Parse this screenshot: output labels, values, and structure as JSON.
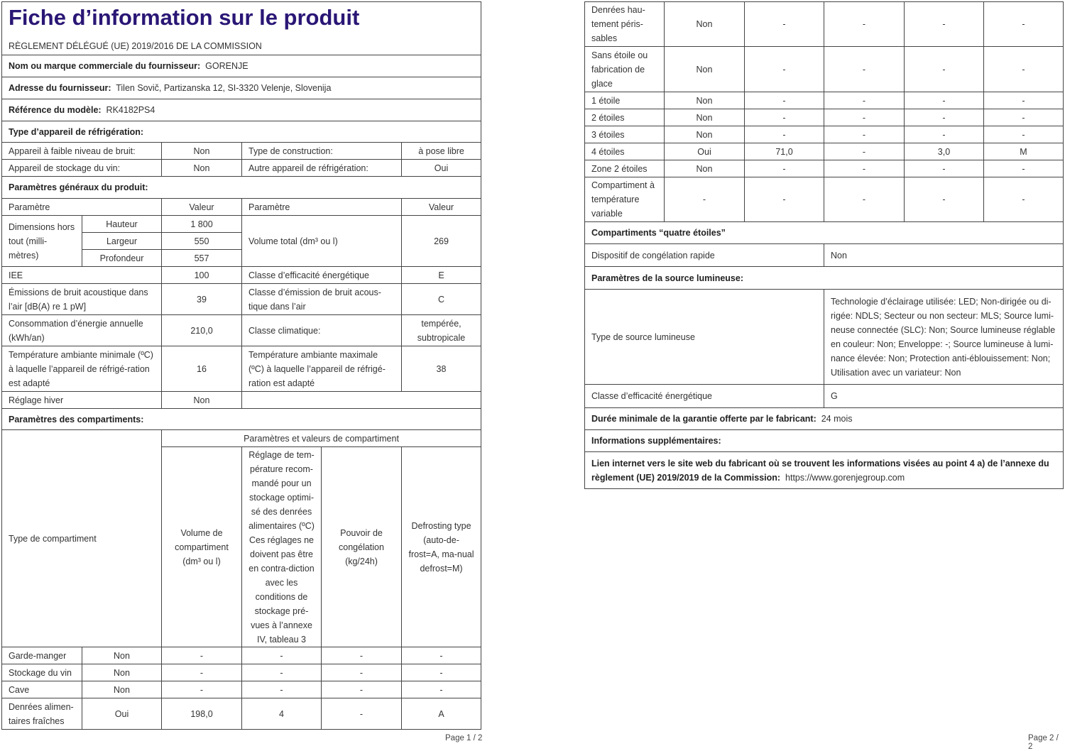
{
  "title": "Fiche d’information sur le produit",
  "subtitle": "RÈGLEMENT DÉLÉGUÉ (UE) 2019/2016 DE LA COMMISSION",
  "supplier_label": "Nom ou marque commerciale du fournisseur:",
  "supplier": "GORENJE",
  "address_label": "Adresse du fournisseur:",
  "address": "Tilen Sovič, Partizanska 12, SI-3320 Velenje, Slovenija",
  "model_label": "Référence du modèle:",
  "model": "RK4182PS4",
  "type_section": "Type d’appareil de réfrigération:",
  "type_rows": [
    [
      "Appareil à faible niveau de bruit:",
      "Non",
      "Type de construction:",
      "à pose libre"
    ],
    [
      "Appareil de stockage du vin:",
      "Non",
      "Autre appareil de réfrigération:",
      "Oui"
    ]
  ],
  "general_section": "Paramètres généraux du produit:",
  "general_header": [
    "Paramètre",
    "Valeur",
    "Paramètre",
    "Valeur"
  ],
  "dimensions": {
    "label": "Dimensions hors tout (milli-mètres)",
    "rows": [
      [
        "Hauteur",
        "1 800"
      ],
      [
        "Largeur",
        "550"
      ],
      [
        "Profondeur",
        "557"
      ]
    ],
    "vol_label": "Volume total (dm³ ou l)",
    "vol": "269"
  },
  "general_rows": [
    [
      "IEE",
      "100",
      "Classe d’efficacité énergétique",
      "E"
    ],
    [
      "Émissions de bruit acoustique dans l’air [dB(A) re 1 pW]",
      "39",
      "Classe d’émission de bruit acous-tique dans l’air",
      "C"
    ],
    [
      "Consommation d’énergie annuelle (kWh/an)",
      "210,0",
      "Classe climatique:",
      "tempérée, subtropicale"
    ],
    [
      "Température ambiante minimale (ºC) à laquelle l’appareil de réfrigé-ration est adapté",
      "16",
      "Température ambiante maximale (ºC) à laquelle l’appareil de réfrigé-ration est adapté",
      "38"
    ]
  ],
  "winter": [
    "Réglage hiver",
    "Non"
  ],
  "comp_section": "Paramètres des compartiments:",
  "comp_header": {
    "type": "Type de compartiment",
    "group": "Paramètres et valeurs de compartiment",
    "cols": [
      "Volume de compartiment (dm³ ou l)",
      "Réglage de tem-pérature recom-mandé pour un stockage optimi-sé des denrées alimentaires (ºC) Ces réglages ne doivent pas être en contra-diction avec les conditions de stockage pré-vues à l’annexe IV, tableau 3",
      "Pouvoir de congélation (kg/24h)",
      "Defrosting type (auto-de-frost=A, ma-nual defrost=M)"
    ]
  },
  "comp_rows_p1": [
    [
      "Garde-manger",
      "Non",
      "-",
      "-",
      "-",
      "-"
    ],
    [
      "Stockage du vin",
      "Non",
      "-",
      "-",
      "-",
      "-"
    ],
    [
      "Cave",
      "Non",
      "-",
      "-",
      "-",
      "-"
    ],
    [
      "Denrées alimen-taires fraîches",
      "Oui",
      "198,0",
      "4",
      "-",
      "A"
    ]
  ],
  "comp_rows_p2": [
    [
      "Denrées hau-tement péris-sables",
      "Non",
      "-",
      "-",
      "-",
      "-"
    ],
    [
      "Sans étoile ou fabrication de glace",
      "Non",
      "-",
      "-",
      "-",
      "-"
    ],
    [
      "1 étoile",
      "Non",
      "-",
      "-",
      "-",
      "-"
    ],
    [
      "2 étoiles",
      "Non",
      "-",
      "-",
      "-",
      "-"
    ],
    [
      "3 étoiles",
      "Non",
      "-",
      "-",
      "-",
      "-"
    ],
    [
      "4 étoiles",
      "Oui",
      "71,0",
      "-",
      "3,0",
      "M"
    ],
    [
      "Zone 2 étoiles",
      "Non",
      "-",
      "-",
      "-",
      "-"
    ],
    [
      "Compartiment à température variable",
      "-",
      "-",
      "-",
      "-",
      "-"
    ]
  ],
  "four_star_section": "Compartiments “quatre étoiles”",
  "fast_freeze": [
    "Dispositif de congélation rapide",
    "Non"
  ],
  "light_section": "Paramètres de la source lumineuse:",
  "light_type": [
    "Type de source lumineuse",
    "Technologie d’éclairage utilisée: LED; Non-dirigée ou di-rigée: NDLS; Secteur ou non secteur: MLS; Source lumi-neuse connectée (SLC): Non; Source lumineuse réglable en couleur: Non; Enveloppe: -; Source lumineuse à lumi-nance élevée: Non; Protection anti-éblouissement: Non; Utilisation avec un variateur: Non"
  ],
  "light_class": [
    "Classe d’efficacité énergétique",
    "G"
  ],
  "warranty_label": "Durée minimale de la garantie offerte par le fabricant:",
  "warranty": "24 mois",
  "extra_section": "Informations supplémentaires:",
  "link_label": "Lien internet vers le site web du fabricant où se trouvent les informations visées au point 4 a) de l’annexe du règlement (UE) 2019/2019 de la Commission:",
  "link": "https://www.gorenjegroup.com",
  "page1": "Page 1 / 2",
  "page2": "Page 2 / 2"
}
